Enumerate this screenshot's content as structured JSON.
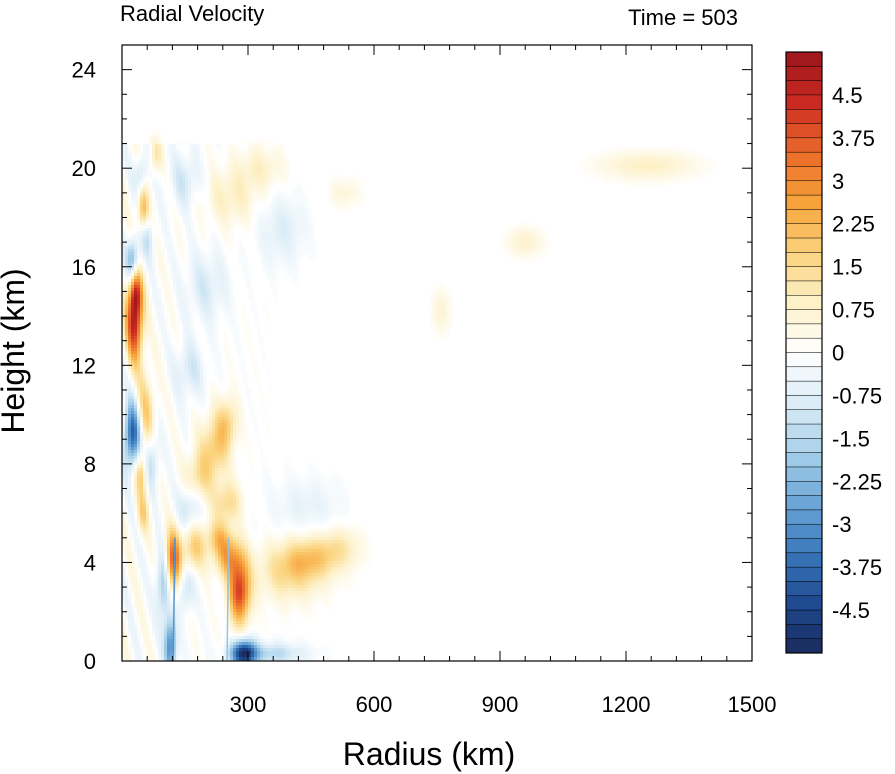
{
  "chart_data": {
    "type": "heatmap",
    "title_left": "Radial Velocity",
    "title_right": "Time = 503",
    "xlabel": "Radius (km)",
    "ylabel": "Height (km)",
    "xlim": [
      0,
      1500
    ],
    "ylim": [
      0,
      25
    ],
    "xticks": [
      300,
      600,
      900,
      1200,
      1500
    ],
    "yticks": [
      0,
      4,
      8,
      12,
      16,
      20,
      24
    ],
    "colorbar": {
      "vmin": -5.25,
      "vmax": 5.25,
      "step": 0.25,
      "labels": [
        "4.5",
        "3.75",
        "3",
        "2.25",
        "1.5",
        "0.75",
        "0",
        "-0.75",
        "-1.5",
        "-2.25",
        "-3",
        "-3.75",
        "-4.5"
      ],
      "label_values": [
        4.5,
        3.75,
        3,
        2.25,
        1.5,
        0.75,
        0,
        -0.75,
        -1.5,
        -2.25,
        -3,
        -3.75,
        -4.5
      ],
      "colors": [
        "#1a2a5e",
        "#1f4a91",
        "#3a78bc",
        "#6ba6d6",
        "#a7d0ea",
        "#dcedf7",
        "#ffffff",
        "#fdf1c8",
        "#fbd27b",
        "#f7a23a",
        "#ea6a2a",
        "#cb2a22",
        "#9b151b"
      ]
    },
    "features": [
      {
        "r": 30,
        "z": 13.8,
        "sr": 14,
        "sz": 1.1,
        "v": 4.8
      },
      {
        "r": 33,
        "z": 15.0,
        "sr": 10,
        "sz": 0.6,
        "v": 2.5
      },
      {
        "r": 25,
        "z": 16.3,
        "sr": 10,
        "sz": 0.6,
        "v": -2.6
      },
      {
        "r": 25,
        "z": 9.2,
        "sr": 14,
        "sz": 0.9,
        "v": -4.2
      },
      {
        "r": 55,
        "z": 10.0,
        "sr": 16,
        "sz": 1.2,
        "v": 1.8
      },
      {
        "r": 45,
        "z": 7.6,
        "sr": 10,
        "sz": 0.6,
        "v": 1.8
      },
      {
        "r": 70,
        "z": 8.2,
        "sr": 12,
        "sz": 0.8,
        "v": -1.6
      },
      {
        "r": 50,
        "z": 6.0,
        "sr": 10,
        "sz": 0.6,
        "v": 1.5
      },
      {
        "r": 50,
        "z": 18.3,
        "sr": 9,
        "sz": 0.6,
        "v": 2.3
      },
      {
        "r": 45,
        "z": 19.8,
        "sr": 10,
        "sz": 0.5,
        "v": -1.3
      },
      {
        "r": 60,
        "z": 17.2,
        "sr": 12,
        "sz": 0.6,
        "v": -1.1
      },
      {
        "r": 80,
        "z": 20.5,
        "sr": 10,
        "sz": 0.5,
        "v": 1.2
      },
      {
        "r": 120,
        "z": 4.0,
        "sr": 14,
        "sz": 0.9,
        "v": 4.0
      },
      {
        "r": 100,
        "z": 3.2,
        "sr": 12,
        "sz": 1.0,
        "v": -2.5
      },
      {
        "r": 115,
        "z": 0.6,
        "sr": 10,
        "sz": 0.8,
        "v": -3.3
      },
      {
        "r": 280,
        "z": 2.8,
        "sr": 18,
        "sz": 0.9,
        "v": 4.0
      },
      {
        "r": 255,
        "z": 4.2,
        "sr": 25,
        "sz": 0.6,
        "v": 2.2
      },
      {
        "r": 230,
        "z": 5.0,
        "sr": 22,
        "sz": 0.5,
        "v": 1.6
      },
      {
        "r": 170,
        "z": 4.6,
        "sr": 20,
        "sz": 0.7,
        "v": 1.8
      },
      {
        "r": 150,
        "z": 3.0,
        "sr": 16,
        "sz": 0.7,
        "v": -1.3
      },
      {
        "r": 290,
        "z": 0.3,
        "sr": 20,
        "sz": 0.4,
        "v": -4.6
      },
      {
        "r": 350,
        "z": 0.3,
        "sr": 60,
        "sz": 0.3,
        "v": -1.5
      },
      {
        "r": 400,
        "z": 3.6,
        "sr": 55,
        "sz": 0.8,
        "v": 1.5
      },
      {
        "r": 450,
        "z": 4.2,
        "sr": 45,
        "sz": 0.6,
        "v": 1.4
      },
      {
        "r": 520,
        "z": 4.6,
        "sr": 35,
        "sz": 0.6,
        "v": 1.0
      },
      {
        "r": 220,
        "z": 8.6,
        "sr": 25,
        "sz": 0.9,
        "v": 1.8
      },
      {
        "r": 250,
        "z": 9.7,
        "sr": 18,
        "sz": 0.7,
        "v": 1.5
      },
      {
        "r": 180,
        "z": 7.4,
        "sr": 22,
        "sz": 0.7,
        "v": 1.4
      },
      {
        "r": 160,
        "z": 6.2,
        "sr": 20,
        "sz": 0.7,
        "v": -1.3
      },
      {
        "r": 250,
        "z": 6.4,
        "sr": 25,
        "sz": 0.6,
        "v": 1.5
      },
      {
        "r": 160,
        "z": 11.8,
        "sr": 25,
        "sz": 0.8,
        "v": -1.0
      },
      {
        "r": 200,
        "z": 15.2,
        "sr": 35,
        "sz": 1.0,
        "v": -0.9
      },
      {
        "r": 260,
        "z": 18.8,
        "sr": 45,
        "sz": 0.8,
        "v": 0.9
      },
      {
        "r": 330,
        "z": 20.0,
        "sr": 40,
        "sz": 0.6,
        "v": 0.8
      },
      {
        "r": 150,
        "z": 19.5,
        "sr": 25,
        "sz": 0.8,
        "v": -1.0
      },
      {
        "r": 380,
        "z": 17.5,
        "sr": 40,
        "sz": 1.0,
        "v": -0.8
      },
      {
        "r": 1250,
        "z": 20.1,
        "sr": 80,
        "sz": 0.4,
        "v": 0.9
      },
      {
        "r": 960,
        "z": 17.0,
        "sr": 30,
        "sz": 0.4,
        "v": 0.8
      },
      {
        "r": 530,
        "z": 19.0,
        "sr": 25,
        "sz": 0.4,
        "v": 0.6
      },
      {
        "r": 440,
        "z": 6.3,
        "sr": 60,
        "sz": 0.8,
        "v": -0.6
      },
      {
        "r": 760,
        "z": 14.2,
        "sr": 15,
        "sz": 0.6,
        "v": 0.7
      }
    ],
    "streaks": [
      {
        "r": 122,
        "v": -3.0
      },
      {
        "r": 250,
        "v": -2.0
      }
    ]
  }
}
